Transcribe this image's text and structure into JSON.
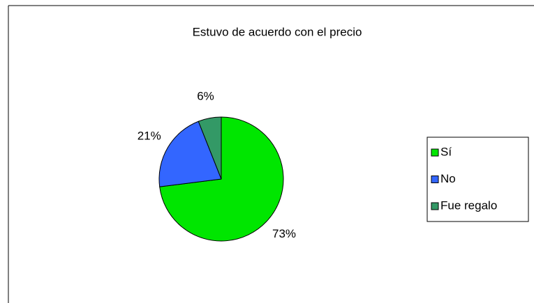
{
  "chart_data": {
    "type": "pie",
    "title": "Estuvo de acuerdo con el precio",
    "categories": [
      "Sí",
      "No",
      "Fue regalo"
    ],
    "values": [
      73,
      21,
      6
    ],
    "value_labels": [
      "73%",
      "21%",
      "6%"
    ],
    "colors": [
      "#00e600",
      "#3366ff",
      "#339966"
    ],
    "legend": "right"
  }
}
